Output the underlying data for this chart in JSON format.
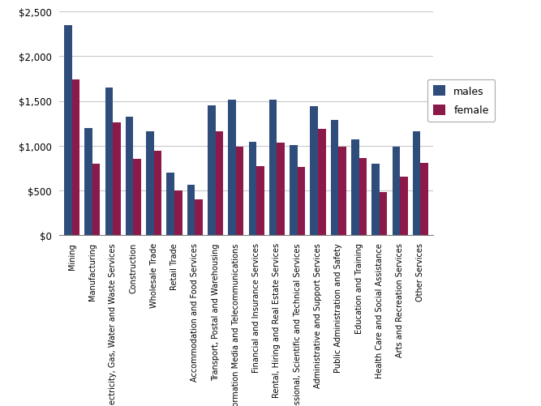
{
  "categories": [
    "Mining",
    "Manufacturing",
    "Electricity, Gas, Water and Waste Services",
    "Construction",
    "Wholesale Trade",
    "Retail Trade",
    "Accommodation and Food Services",
    "Transport, Postal and Warehousing",
    "Information Media and Telecommunications",
    "Financial and Insurance Services",
    "Rental, Hiring and Real Estate Services",
    "Professional, Scientific and Technical Services",
    "Administrative and Support Services",
    "Public Administration and Safety",
    "Education and Training",
    "Health Care and Social Assistance",
    "Arts and Recreation Services",
    "Other Services"
  ],
  "males": [
    2350,
    1200,
    1650,
    1320,
    1160,
    700,
    560,
    1450,
    1510,
    1040,
    1510,
    1010,
    1440,
    1290,
    1070,
    800,
    990,
    1160
  ],
  "females": [
    1740,
    800,
    1260,
    850,
    940,
    500,
    400,
    1160,
    990,
    770,
    1030,
    760,
    1190,
    990,
    860,
    480,
    650,
    810
  ],
  "male_color": "#2E4D7B",
  "female_color": "#8B1A4A",
  "ylim": [
    0,
    2500
  ],
  "yticks": [
    0,
    500,
    1000,
    1500,
    2000,
    2500
  ],
  "ytick_labels": [
    "$0",
    "$500",
    "$1,000",
    "$1,500",
    "$2,000",
    "$2,500"
  ],
  "legend_labels": [
    "males",
    "female"
  ],
  "bar_width": 0.38,
  "figsize": [
    6.67,
    5.02
  ],
  "dpi": 100,
  "background_color": "#FFFFFF",
  "grid_color": "#C8C8C8"
}
